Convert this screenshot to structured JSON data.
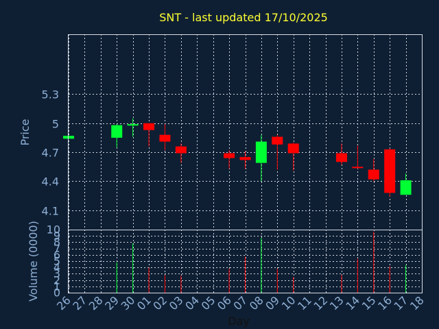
{
  "chart_data": {
    "type": "candlestick",
    "title": "SNT - last updated 17/10/2025",
    "ylabel": "Price",
    "xlabel": "Day",
    "volume_label": "Volume (0000)",
    "ylim": [
      3.9,
      5.92
    ],
    "yticks": [
      "5.3",
      "5",
      "4.7",
      "4.4",
      "4.1"
    ],
    "ytick_values": [
      5.3,
      5.0,
      4.7,
      4.4,
      4.1
    ],
    "volume_ylim": [
      0,
      10
    ],
    "volume_ticks": [
      "10",
      "9",
      "8",
      "7",
      "6",
      "5",
      "4",
      "3",
      "2",
      "1",
      "0"
    ],
    "volume_tick_values": [
      10,
      9,
      8,
      7,
      6,
      5,
      4,
      3,
      2,
      1,
      0
    ],
    "x_labels": [
      "26",
      "27",
      "28",
      "29",
      "30",
      "01",
      "02",
      "03",
      "04",
      "05",
      "06",
      "07",
      "08",
      "09",
      "10",
      "11",
      "12",
      "13",
      "14",
      "15",
      "16",
      "17",
      "18"
    ],
    "candles": [
      {
        "day": "26",
        "open": 4.84,
        "high": 4.87,
        "low": 4.84,
        "close": 4.87
      },
      {
        "day": "29",
        "open": 4.85,
        "high": 4.99,
        "low": 4.75,
        "close": 4.98
      },
      {
        "day": "30",
        "open": 4.98,
        "high": 5.05,
        "low": 4.86,
        "close": 4.99
      },
      {
        "day": "01",
        "open": 5.0,
        "high": 5.0,
        "low": 4.76,
        "close": 4.93
      },
      {
        "day": "02",
        "open": 4.88,
        "high": 4.99,
        "low": 4.72,
        "close": 4.81
      },
      {
        "day": "03",
        "open": 4.76,
        "high": 4.79,
        "low": 4.59,
        "close": 4.69
      },
      {
        "day": "06",
        "open": 4.69,
        "high": 4.72,
        "low": 4.53,
        "close": 4.64
      },
      {
        "day": "07",
        "open": 4.65,
        "high": 4.71,
        "low": 4.53,
        "close": 4.62
      },
      {
        "day": "08",
        "open": 4.59,
        "high": 4.88,
        "low": 4.4,
        "close": 4.81
      },
      {
        "day": "09",
        "open": 4.86,
        "high": 4.88,
        "low": 4.52,
        "close": 4.78
      },
      {
        "day": "10",
        "open": 4.79,
        "high": 4.8,
        "low": 4.51,
        "close": 4.69
      },
      {
        "day": "13",
        "open": 4.69,
        "high": 4.79,
        "low": 4.57,
        "close": 4.6
      },
      {
        "day": "14",
        "open": 4.55,
        "high": 4.77,
        "low": 4.53,
        "close": 4.54
      },
      {
        "day": "15",
        "open": 4.52,
        "high": 4.63,
        "low": 4.4,
        "close": 4.42
      },
      {
        "day": "16",
        "open": 4.73,
        "high": 4.74,
        "low": 4.24,
        "close": 4.28
      },
      {
        "day": "17",
        "open": 4.26,
        "high": 4.48,
        "low": 4.26,
        "close": 4.41
      }
    ],
    "volumes": [
      {
        "day": "29",
        "value": 4.8
      },
      {
        "day": "30",
        "value": 7.8
      },
      {
        "day": "01",
        "value": 4.0
      },
      {
        "day": "02",
        "value": 2.8
      },
      {
        "day": "03",
        "value": 2.7
      },
      {
        "day": "06",
        "value": 3.8
      },
      {
        "day": "07",
        "value": 5.7
      },
      {
        "day": "08",
        "value": 8.7
      },
      {
        "day": "09",
        "value": 3.8
      },
      {
        "day": "10",
        "value": 2.5
      },
      {
        "day": "13",
        "value": 2.8
      },
      {
        "day": "14",
        "value": 5.4
      },
      {
        "day": "15",
        "value": 9.7
      },
      {
        "day": "16",
        "value": 4.2
      },
      {
        "day": "17",
        "value": 4.4
      }
    ],
    "colors": {
      "up": "#00ff33",
      "down": "#ff0000",
      "title": "#ffff33",
      "text": "#8eb0d6",
      "background": "#0f1f33"
    },
    "grid": true
  }
}
